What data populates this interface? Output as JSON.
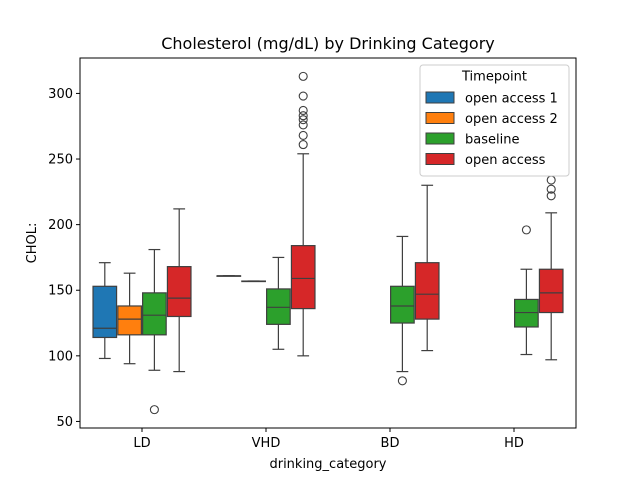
{
  "chart_data": {
    "type": "box",
    "title": "Cholesterol (mg/dL) by Drinking Category",
    "xlabel": "drinking_category",
    "ylabel": "CHOL:",
    "ylim": [
      45,
      327
    ],
    "yticks": [
      50,
      100,
      150,
      200,
      250,
      300
    ],
    "categories": [
      "LD",
      "VHD",
      "BD",
      "HD"
    ],
    "legend": {
      "title": "Timepoint",
      "placement": "top-right"
    },
    "series": [
      {
        "name": "open access 1",
        "color": "#1f77b4",
        "boxes": [
          {
            "category": "LD",
            "whisker_low": 98,
            "q1": 114,
            "median": 121,
            "q3": 153,
            "whisker_high": 171,
            "outliers": []
          },
          {
            "category": "VHD",
            "whisker_low": 161,
            "q1": 161,
            "median": 161,
            "q3": 161,
            "whisker_high": 161,
            "outliers": []
          }
        ]
      },
      {
        "name": "open access 2",
        "color": "#ff7f0e",
        "boxes": [
          {
            "category": "LD",
            "whisker_low": 94,
            "q1": 116,
            "median": 128,
            "q3": 138,
            "whisker_high": 163,
            "outliers": []
          },
          {
            "category": "VHD",
            "whisker_low": 157,
            "q1": 157,
            "median": 157,
            "q3": 157,
            "whisker_high": 157,
            "outliers": []
          }
        ]
      },
      {
        "name": "baseline",
        "color": "#2ca02c",
        "boxes": [
          {
            "category": "LD",
            "whisker_low": 89,
            "q1": 116,
            "median": 131,
            "q3": 148,
            "whisker_high": 181,
            "outliers": [
              59
            ]
          },
          {
            "category": "VHD",
            "whisker_low": 105,
            "q1": 124,
            "median": 137,
            "q3": 151,
            "whisker_high": 175,
            "outliers": []
          },
          {
            "category": "BD",
            "whisker_low": 88,
            "q1": 125,
            "median": 138,
            "q3": 153,
            "whisker_high": 191,
            "outliers": [
              81
            ]
          },
          {
            "category": "HD",
            "whisker_low": 101,
            "q1": 122,
            "median": 133,
            "q3": 143,
            "whisker_high": 166,
            "outliers": [
              196
            ]
          }
        ]
      },
      {
        "name": "open access",
        "color": "#d62728",
        "boxes": [
          {
            "category": "LD",
            "whisker_low": 88,
            "q1": 130,
            "median": 144,
            "q3": 168,
            "whisker_high": 212,
            "outliers": []
          },
          {
            "category": "VHD",
            "whisker_low": 100,
            "q1": 136,
            "median": 159,
            "q3": 184,
            "whisker_high": 254,
            "outliers": [
              261,
              268,
              276,
              280,
              283,
              287,
              298,
              313
            ]
          },
          {
            "category": "BD",
            "whisker_low": 104,
            "q1": 128,
            "median": 147,
            "q3": 171,
            "whisker_high": 230,
            "outliers": []
          },
          {
            "category": "HD",
            "whisker_low": 97,
            "q1": 133,
            "median": 148,
            "q3": 166,
            "whisker_high": 209,
            "outliers": [
              222,
              227,
              234
            ]
          }
        ]
      }
    ]
  }
}
